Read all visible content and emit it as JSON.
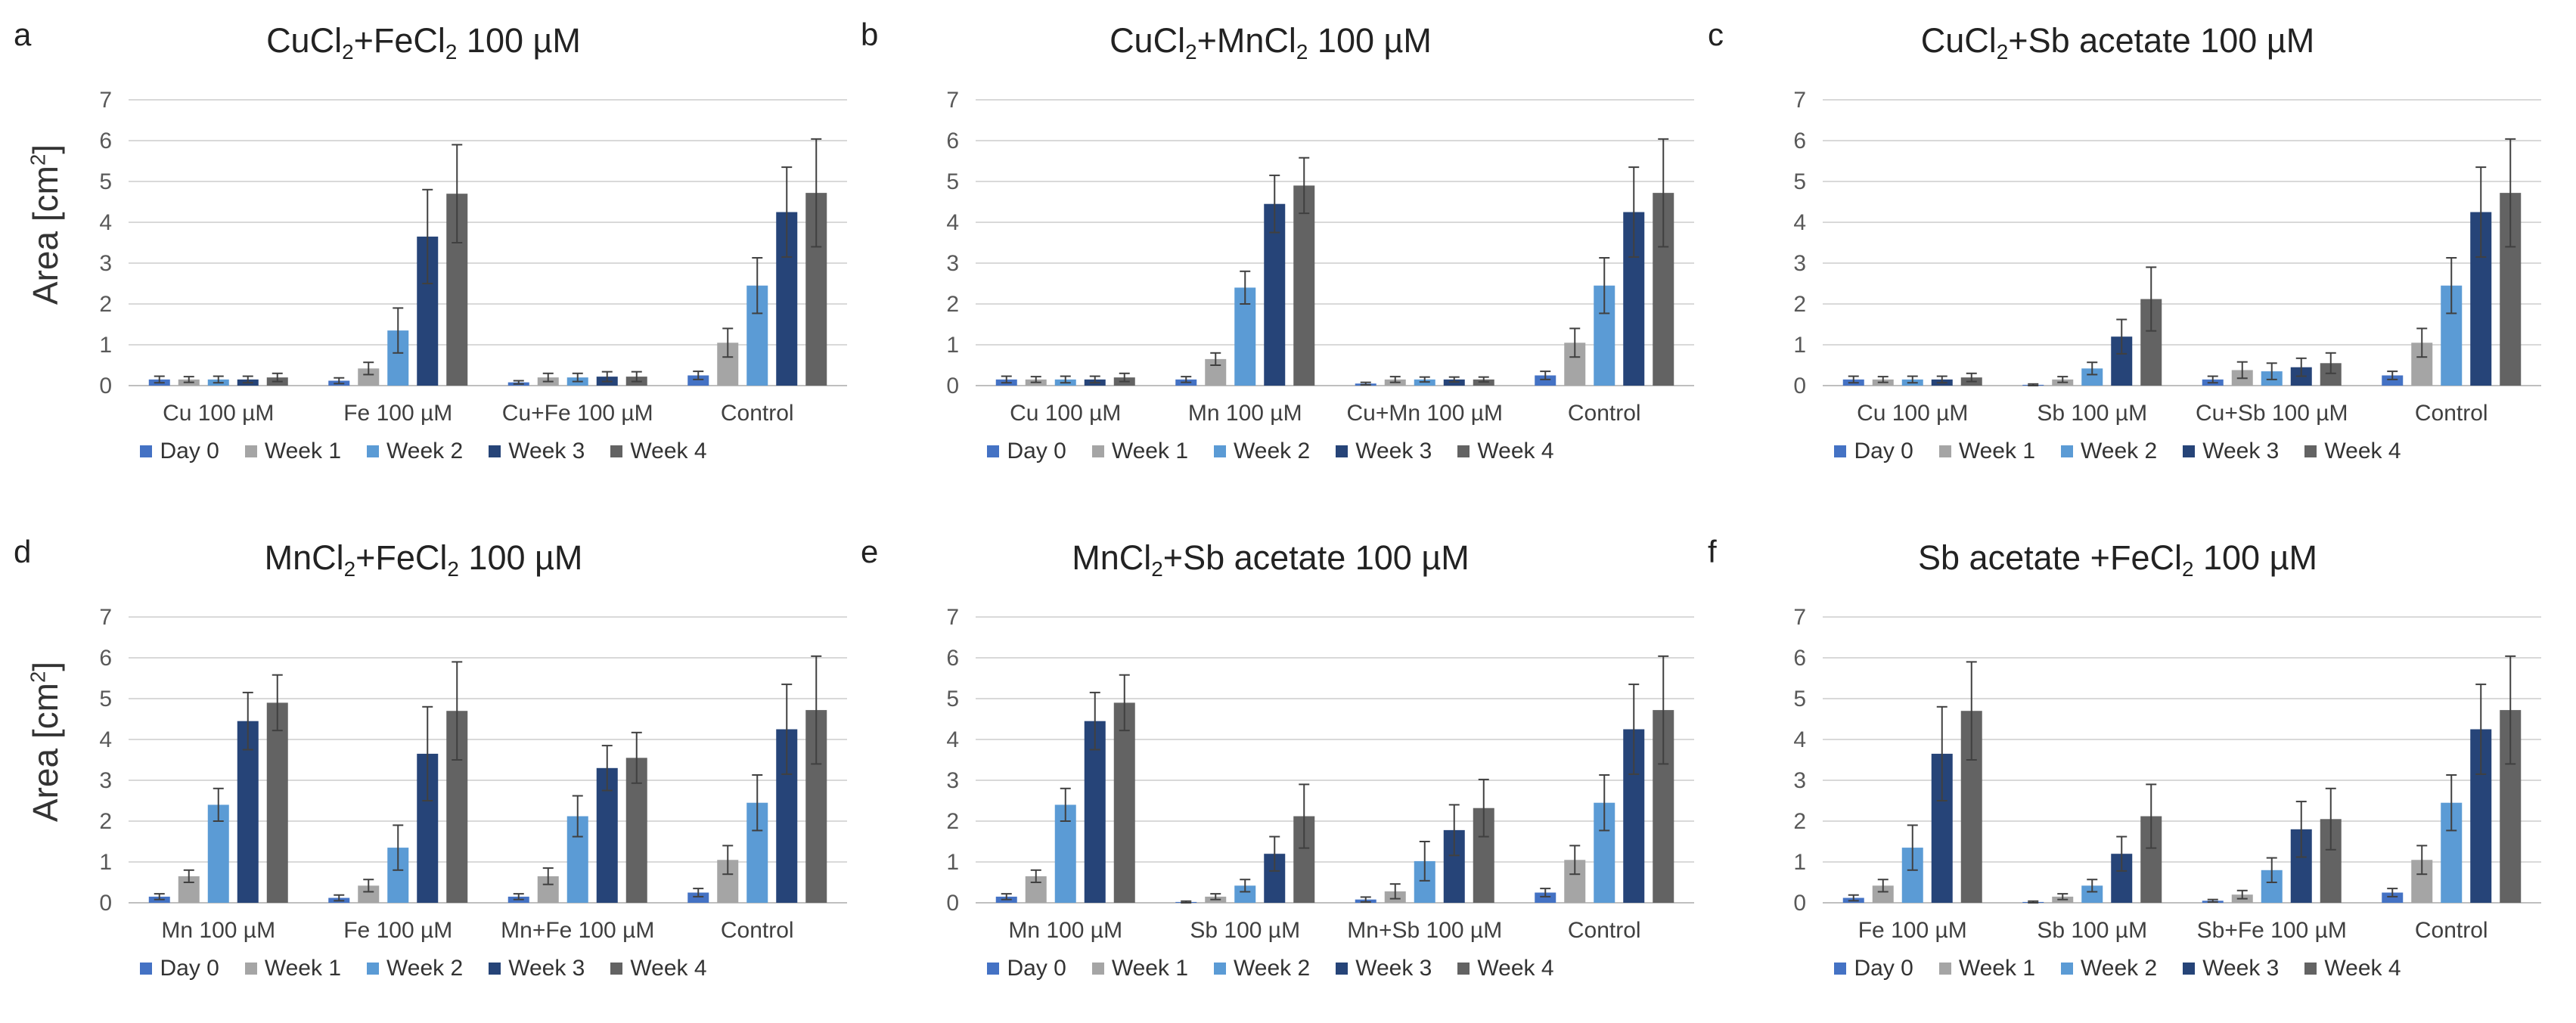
{
  "y_axis_label": "Area [cm",
  "y_axis_label_sup": "2",
  "y_axis_label_end": "]",
  "legend": [
    "Day 0",
    "Week 1",
    "Week 2",
    "Week 3",
    "Week 4"
  ],
  "colors": {
    "Day 0": "#4472c4",
    "Week 1": "#a5a5a5",
    "Week 2": "#5b9bd5",
    "Week 3": "#264478",
    "Week 4": "#636363"
  },
  "panels": [
    {
      "letter": "a",
      "title_parts": [
        "CuCl",
        "2",
        "+FeCl",
        "2",
        " 100 µM"
      ]
    },
    {
      "letter": "b",
      "title_parts": [
        "CuCl",
        "2",
        "+MnCl",
        "2",
        " 100 µM"
      ]
    },
    {
      "letter": "c",
      "title_parts": [
        "CuCl",
        "2",
        "+Sb acetate 100 µM",
        "",
        ""
      ]
    },
    {
      "letter": "d",
      "title_parts": [
        "MnCl",
        "2",
        "+FeCl",
        "2",
        " 100 µM"
      ]
    },
    {
      "letter": "e",
      "title_parts": [
        "MnCl",
        "2",
        "+Sb acetate 100 µM",
        "",
        ""
      ]
    },
    {
      "letter": "f",
      "title_parts": [
        "Sb acetate +FeCl",
        "2",
        " 100 µM",
        "",
        ""
      ]
    }
  ],
  "chart_data": [
    {
      "type": "bar",
      "ylim": [
        0,
        7
      ],
      "yticks": [
        0,
        1,
        2,
        3,
        4,
        5,
        6,
        7
      ],
      "grid": true,
      "legend_position": "bottom",
      "categories": [
        "Cu 100 µM",
        "Fe 100 µM",
        "Cu+Fe 100 µM",
        "Control"
      ],
      "series": [
        {
          "name": "Day 0",
          "values": [
            0.15,
            0.12,
            0.08,
            0.25
          ],
          "errors": [
            0.08,
            0.07,
            0.04,
            0.1
          ]
        },
        {
          "name": "Week 1",
          "values": [
            0.15,
            0.42,
            0.2,
            1.05
          ],
          "errors": [
            0.07,
            0.15,
            0.1,
            0.35
          ]
        },
        {
          "name": "Week 2",
          "values": [
            0.15,
            1.35,
            0.2,
            2.45
          ],
          "errors": [
            0.08,
            0.55,
            0.1,
            0.68
          ]
        },
        {
          "name": "Week 3",
          "values": [
            0.15,
            3.65,
            0.22,
            4.25
          ],
          "errors": [
            0.08,
            1.15,
            0.12,
            1.1
          ]
        },
        {
          "name": "Week 4",
          "values": [
            0.2,
            4.7,
            0.22,
            4.72
          ],
          "errors": [
            0.1,
            1.2,
            0.12,
            1.32
          ]
        }
      ]
    },
    {
      "type": "bar",
      "ylim": [
        0,
        7
      ],
      "yticks": [
        0,
        1,
        2,
        3,
        4,
        5,
        6,
        7
      ],
      "grid": true,
      "legend_position": "bottom",
      "categories": [
        "Cu 100 µM",
        "Mn 100 µM",
        "Cu+Mn 100 µM",
        "Control"
      ],
      "series": [
        {
          "name": "Day 0",
          "values": [
            0.15,
            0.15,
            0.05,
            0.25
          ],
          "errors": [
            0.08,
            0.07,
            0.03,
            0.1
          ]
        },
        {
          "name": "Week 1",
          "values": [
            0.15,
            0.65,
            0.15,
            1.05
          ],
          "errors": [
            0.07,
            0.15,
            0.07,
            0.35
          ]
        },
        {
          "name": "Week 2",
          "values": [
            0.15,
            2.4,
            0.15,
            2.45
          ],
          "errors": [
            0.08,
            0.4,
            0.06,
            0.68
          ]
        },
        {
          "name": "Week 3",
          "values": [
            0.15,
            4.45,
            0.15,
            4.25
          ],
          "errors": [
            0.08,
            0.7,
            0.06,
            1.1
          ]
        },
        {
          "name": "Week 4",
          "values": [
            0.2,
            4.9,
            0.15,
            4.72
          ],
          "errors": [
            0.1,
            0.68,
            0.06,
            1.32
          ]
        }
      ]
    },
    {
      "type": "bar",
      "ylim": [
        0,
        7
      ],
      "yticks": [
        0,
        1,
        2,
        3,
        4,
        5,
        6,
        7
      ],
      "grid": true,
      "legend_position": "bottom",
      "categories": [
        "Cu 100 µM",
        "Sb 100 µM",
        "Cu+Sb 100 µM",
        "Control"
      ],
      "series": [
        {
          "name": "Day 0",
          "values": [
            0.15,
            0.02,
            0.15,
            0.25
          ],
          "errors": [
            0.08,
            0.02,
            0.08,
            0.1
          ]
        },
        {
          "name": "Week 1",
          "values": [
            0.15,
            0.15,
            0.38,
            1.05
          ],
          "errors": [
            0.07,
            0.07,
            0.2,
            0.35
          ]
        },
        {
          "name": "Week 2",
          "values": [
            0.15,
            0.42,
            0.35,
            2.45
          ],
          "errors": [
            0.08,
            0.15,
            0.2,
            0.68
          ]
        },
        {
          "name": "Week 3",
          "values": [
            0.15,
            1.2,
            0.45,
            4.25
          ],
          "errors": [
            0.08,
            0.42,
            0.22,
            1.1
          ]
        },
        {
          "name": "Week 4",
          "values": [
            0.2,
            2.12,
            0.55,
            4.72
          ],
          "errors": [
            0.1,
            0.78,
            0.25,
            1.32
          ]
        }
      ]
    },
    {
      "type": "bar",
      "ylim": [
        0,
        7
      ],
      "yticks": [
        0,
        1,
        2,
        3,
        4,
        5,
        6,
        7
      ],
      "grid": true,
      "legend_position": "bottom",
      "categories": [
        "Mn 100 µM",
        "Fe 100 µM",
        "Mn+Fe 100 µM",
        "Control"
      ],
      "series": [
        {
          "name": "Day 0",
          "values": [
            0.15,
            0.12,
            0.15,
            0.25
          ],
          "errors": [
            0.07,
            0.07,
            0.07,
            0.1
          ]
        },
        {
          "name": "Week 1",
          "values": [
            0.65,
            0.42,
            0.65,
            1.05
          ],
          "errors": [
            0.15,
            0.15,
            0.2,
            0.35
          ]
        },
        {
          "name": "Week 2",
          "values": [
            2.4,
            1.35,
            2.12,
            2.45
          ],
          "errors": [
            0.4,
            0.55,
            0.5,
            0.68
          ]
        },
        {
          "name": "Week 3",
          "values": [
            4.45,
            3.65,
            3.3,
            4.25
          ],
          "errors": [
            0.7,
            1.15,
            0.55,
            1.1
          ]
        },
        {
          "name": "Week 4",
          "values": [
            4.9,
            4.7,
            3.55,
            4.72
          ],
          "errors": [
            0.68,
            1.2,
            0.62,
            1.32
          ]
        }
      ]
    },
    {
      "type": "bar",
      "ylim": [
        0,
        7
      ],
      "yticks": [
        0,
        1,
        2,
        3,
        4,
        5,
        6,
        7
      ],
      "grid": true,
      "legend_position": "bottom",
      "categories": [
        "Mn 100 µM",
        "Sb 100 µM",
        "Mn+Sb 100 µM",
        "Control"
      ],
      "series": [
        {
          "name": "Day 0",
          "values": [
            0.15,
            0.02,
            0.08,
            0.25
          ],
          "errors": [
            0.07,
            0.02,
            0.06,
            0.1
          ]
        },
        {
          "name": "Week 1",
          "values": [
            0.65,
            0.15,
            0.28,
            1.05
          ],
          "errors": [
            0.15,
            0.07,
            0.18,
            0.35
          ]
        },
        {
          "name": "Week 2",
          "values": [
            2.4,
            0.42,
            1.02,
            2.45
          ],
          "errors": [
            0.4,
            0.15,
            0.48,
            0.68
          ]
        },
        {
          "name": "Week 3",
          "values": [
            4.45,
            1.2,
            1.78,
            4.25
          ],
          "errors": [
            0.7,
            0.42,
            0.62,
            1.1
          ]
        },
        {
          "name": "Week 4",
          "values": [
            4.9,
            2.12,
            2.32,
            4.72
          ],
          "errors": [
            0.68,
            0.78,
            0.7,
            1.32
          ]
        }
      ]
    },
    {
      "type": "bar",
      "ylim": [
        0,
        7
      ],
      "yticks": [
        0,
        1,
        2,
        3,
        4,
        5,
        6,
        7
      ],
      "grid": true,
      "legend_position": "bottom",
      "categories": [
        "Fe 100 µM",
        "Sb 100 µM",
        "Sb+Fe 100 µM",
        "Control"
      ],
      "series": [
        {
          "name": "Day 0",
          "values": [
            0.12,
            0.02,
            0.05,
            0.25
          ],
          "errors": [
            0.07,
            0.02,
            0.03,
            0.1
          ]
        },
        {
          "name": "Week 1",
          "values": [
            0.42,
            0.15,
            0.2,
            1.05
          ],
          "errors": [
            0.15,
            0.07,
            0.1,
            0.35
          ]
        },
        {
          "name": "Week 2",
          "values": [
            1.35,
            0.42,
            0.8,
            2.45
          ],
          "errors": [
            0.55,
            0.15,
            0.3,
            0.68
          ]
        },
        {
          "name": "Week 3",
          "values": [
            3.65,
            1.2,
            1.8,
            4.25
          ],
          "errors": [
            1.15,
            0.42,
            0.68,
            1.1
          ]
        },
        {
          "name": "Week 4",
          "values": [
            4.7,
            2.12,
            2.05,
            4.72
          ],
          "errors": [
            1.2,
            0.78,
            0.75,
            1.32
          ]
        }
      ]
    }
  ]
}
